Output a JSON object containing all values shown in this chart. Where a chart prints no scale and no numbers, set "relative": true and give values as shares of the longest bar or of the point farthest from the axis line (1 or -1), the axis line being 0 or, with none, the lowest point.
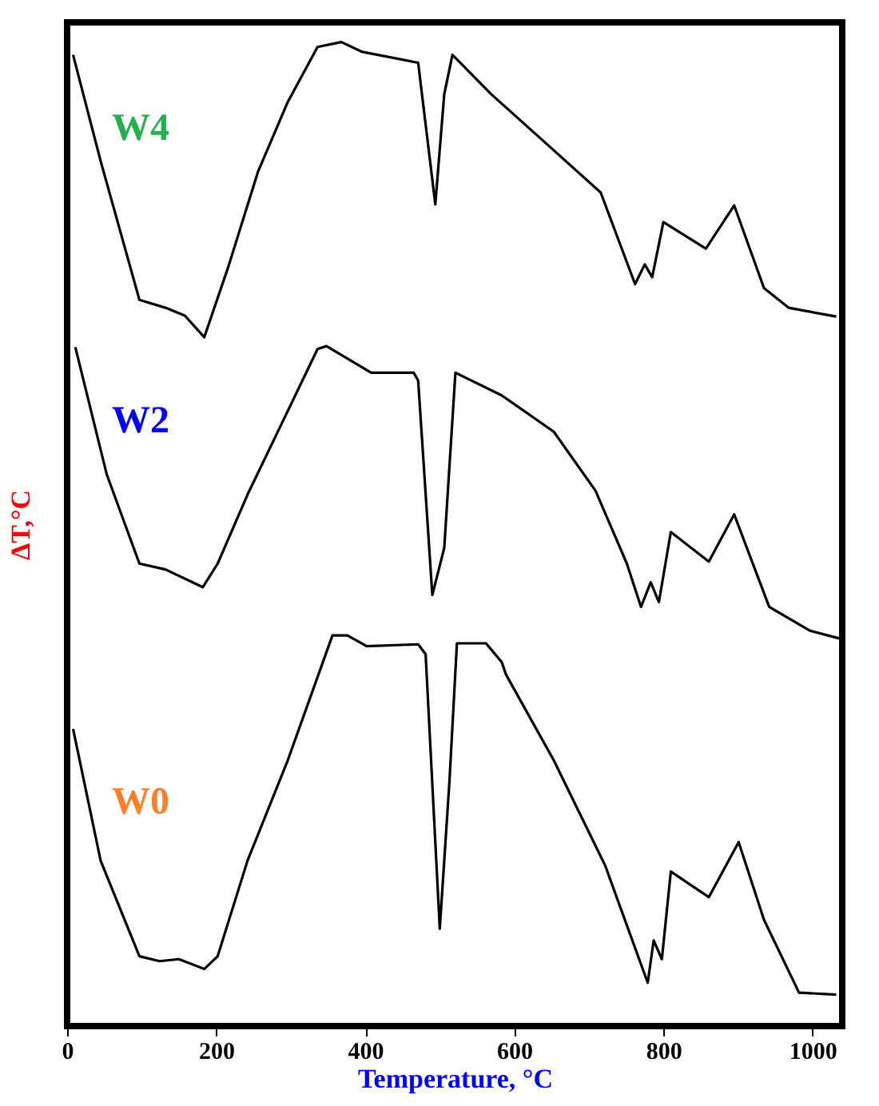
{
  "chart_data": {
    "type": "line",
    "relative": true,
    "xlabel": "Temperature, °C",
    "ylabel": "ΔT,°C",
    "xlim": [
      0,
      1040
    ],
    "xticks": [
      0,
      200,
      400,
      600,
      800,
      1000
    ],
    "grid": false,
    "marker": "none",
    "line_style": "solid",
    "series": [
      {
        "name": "W4",
        "color": "#000000",
        "x": [
          8,
          45,
          97,
          132,
          158,
          184,
          216,
          256,
          296,
          336,
          368,
          396,
          471,
          494,
          506,
          517,
          569,
          653,
          716,
          762,
          775,
          785,
          800,
          857,
          895,
          935,
          968,
          1032
        ],
        "values": [
          0.987,
          0.879,
          0.738,
          0.73,
          0.722,
          0.7,
          0.771,
          0.868,
          0.939,
          0.995,
          1.0,
          0.99,
          0.979,
          0.835,
          0.947,
          0.987,
          0.947,
          0.89,
          0.847,
          0.754,
          0.774,
          0.761,
          0.817,
          0.79,
          0.834,
          0.75,
          0.73,
          0.721
        ]
      },
      {
        "name": "W2",
        "color": "#000000",
        "x": [
          11,
          53,
          97,
          132,
          182,
          202,
          242,
          296,
          336,
          348,
          408,
          465,
          471,
          490,
          506,
          521,
          583,
          653,
          709,
          751,
          770,
          783,
          794,
          810,
          861,
          895,
          942,
          996,
          1036
        ],
        "values": [
          0.69,
          0.561,
          0.47,
          0.464,
          0.446,
          0.47,
          0.54,
          0.625,
          0.688,
          0.691,
          0.664,
          0.664,
          0.656,
          0.438,
          0.486,
          0.664,
          0.641,
          0.604,
          0.544,
          0.47,
          0.426,
          0.451,
          0.431,
          0.502,
          0.472,
          0.52,
          0.426,
          0.402,
          0.394
        ]
      },
      {
        "name": "W0",
        "color": "#000000",
        "x": [
          8,
          45,
          97,
          124,
          150,
          184,
          202,
          242,
          296,
          356,
          376,
          402,
          471,
          481,
          500,
          513,
          523,
          562,
          583,
          589,
          653,
          722,
          779,
          787,
          798,
          810,
          861,
          901,
          935,
          982,
          1032
        ],
        "values": [
          0.302,
          0.168,
          0.071,
          0.066,
          0.068,
          0.058,
          0.071,
          0.168,
          0.27,
          0.397,
          0.397,
          0.386,
          0.388,
          0.378,
          0.099,
          0.249,
          0.389,
          0.389,
          0.37,
          0.357,
          0.27,
          0.163,
          0.044,
          0.087,
          0.068,
          0.157,
          0.131,
          0.187,
          0.108,
          0.034,
          0.032
        ]
      }
    ]
  }
}
